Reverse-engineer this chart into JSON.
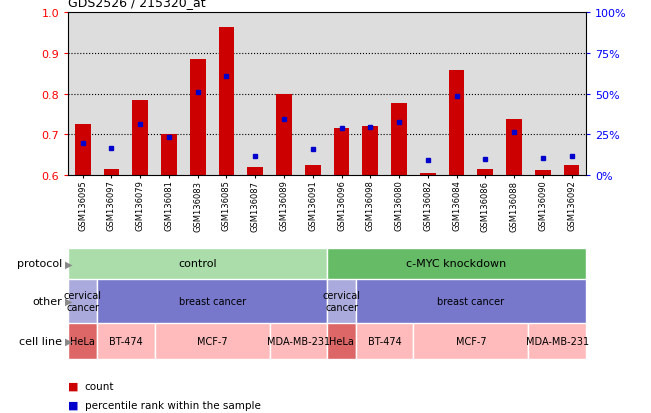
{
  "title": "GDS2526 / 215320_at",
  "samples": [
    "GSM136095",
    "GSM136097",
    "GSM136079",
    "GSM136081",
    "GSM136083",
    "GSM136085",
    "GSM136087",
    "GSM136089",
    "GSM136091",
    "GSM136096",
    "GSM136098",
    "GSM136080",
    "GSM136082",
    "GSM136084",
    "GSM136086",
    "GSM136088",
    "GSM136090",
    "GSM136092"
  ],
  "count_values": [
    0.725,
    0.615,
    0.785,
    0.7,
    0.885,
    0.963,
    0.62,
    0.8,
    0.625,
    0.715,
    0.72,
    0.778,
    0.605,
    0.858,
    0.615,
    0.738,
    0.612,
    0.625
  ],
  "percentile_values": [
    0.68,
    0.668,
    0.725,
    0.695,
    0.803,
    0.843,
    0.648,
    0.738,
    0.665,
    0.715,
    0.718,
    0.73,
    0.638,
    0.795,
    0.64,
    0.705,
    0.643,
    0.648
  ],
  "ymin": 0.6,
  "ymax": 1.0,
  "yticks": [
    0.6,
    0.7,
    0.8,
    0.9,
    1.0
  ],
  "right_ytick_labels": [
    "0%",
    "25%",
    "50%",
    "75%",
    "100%"
  ],
  "right_ytick_pcts": [
    0,
    25,
    50,
    75,
    100
  ],
  "bar_color": "#CC0000",
  "square_color": "#0000CC",
  "bg_color": "#CCCCCC",
  "plot_bg": "#DDDDDD",
  "protocol_row": {
    "label": "protocol",
    "groups": [
      {
        "text": "control",
        "start": 0,
        "end": 9,
        "color": "#AADDAA"
      },
      {
        "text": "c-MYC knockdown",
        "start": 9,
        "end": 18,
        "color": "#66BB66"
      }
    ]
  },
  "other_row": {
    "label": "other",
    "groups": [
      {
        "text": "cervical\ncancer",
        "start": 0,
        "end": 1,
        "color": "#AAAADD"
      },
      {
        "text": "breast cancer",
        "start": 1,
        "end": 9,
        "color": "#7777CC"
      },
      {
        "text": "cervical\ncancer",
        "start": 9,
        "end": 10,
        "color": "#AAAADD"
      },
      {
        "text": "breast cancer",
        "start": 10,
        "end": 18,
        "color": "#7777CC"
      }
    ]
  },
  "cellline_row": {
    "label": "cell line",
    "groups": [
      {
        "text": "HeLa",
        "start": 0,
        "end": 1,
        "color": "#DD6666"
      },
      {
        "text": "BT-474",
        "start": 1,
        "end": 3,
        "color": "#FFBBBB"
      },
      {
        "text": "MCF-7",
        "start": 3,
        "end": 7,
        "color": "#FFBBBB"
      },
      {
        "text": "MDA-MB-231",
        "start": 7,
        "end": 9,
        "color": "#FFBBBB"
      },
      {
        "text": "HeLa",
        "start": 9,
        "end": 10,
        "color": "#DD6666"
      },
      {
        "text": "BT-474",
        "start": 10,
        "end": 12,
        "color": "#FFBBBB"
      },
      {
        "text": "MCF-7",
        "start": 12,
        "end": 16,
        "color": "#FFBBBB"
      },
      {
        "text": "MDA-MB-231",
        "start": 16,
        "end": 18,
        "color": "#FFBBBB"
      }
    ]
  },
  "legend": [
    {
      "color": "#CC0000",
      "label": "count"
    },
    {
      "color": "#0000CC",
      "label": "percentile rank within the sample"
    }
  ]
}
